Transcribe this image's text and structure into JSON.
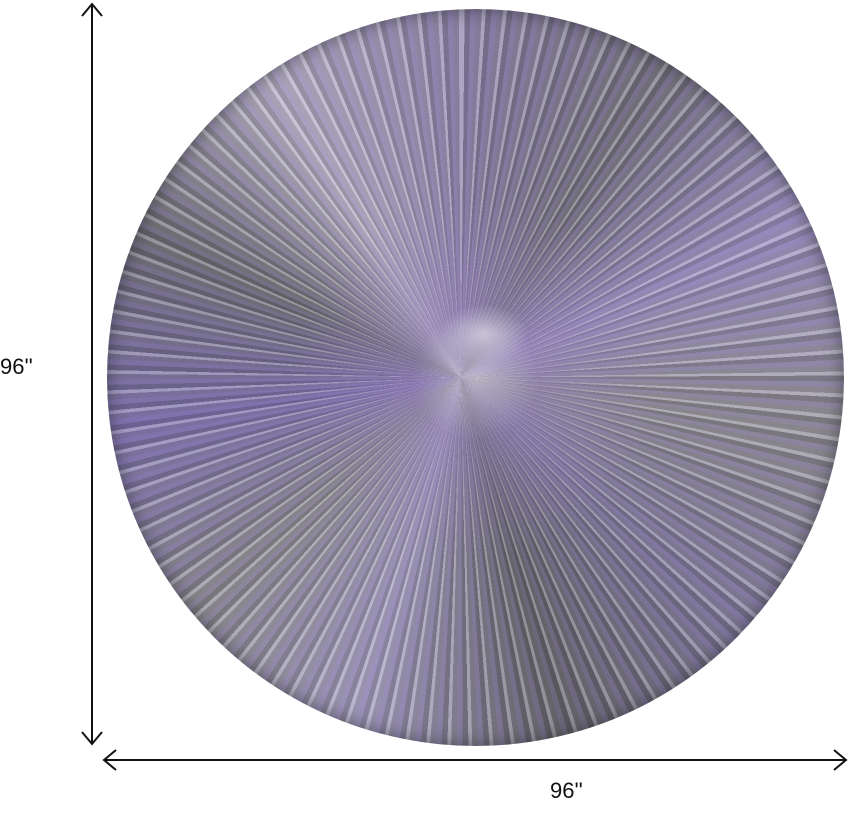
{
  "product": {
    "shape": "round rug",
    "colors": {
      "primary": "#8a80a8",
      "secondary": "#6f6d78",
      "highlight": "#e8e6ea"
    }
  },
  "dimensions": {
    "height_label": "96''",
    "width_label": "96''"
  }
}
